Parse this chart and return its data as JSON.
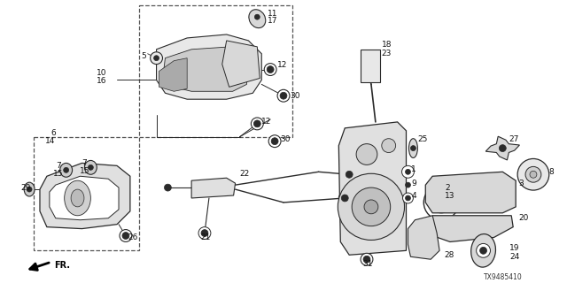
{
  "diagram_code": "TX9485410",
  "bg_color": "#ffffff",
  "line_color": "#2a2a2a",
  "figsize": [
    6.4,
    3.2
  ],
  "dpi": 100
}
